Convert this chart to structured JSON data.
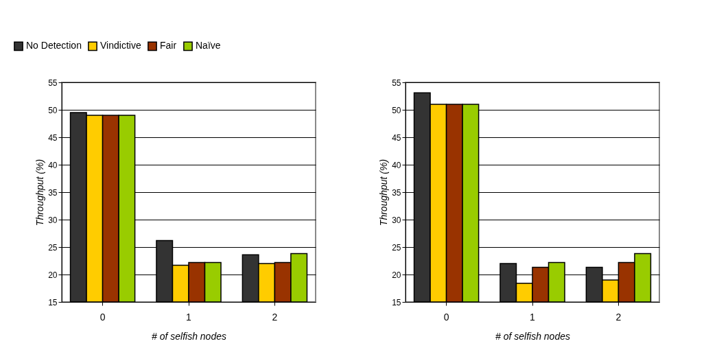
{
  "chart_data": [
    {
      "type": "bar",
      "xlabel": "# of selfish nodes",
      "ylabel": "Throughput (%)",
      "categories": [
        "0",
        "1",
        "2"
      ],
      "ylim": [
        15,
        55
      ],
      "yticks": [
        15,
        20,
        25,
        30,
        35,
        40,
        45,
        50,
        55
      ],
      "grid": "y",
      "legend": "top left",
      "series": [
        {
          "name": "No Detection",
          "color": "#333333",
          "values": [
            49.5,
            26.2,
            23.6
          ]
        },
        {
          "name": "Vindictive",
          "color": "#ffcc00",
          "values": [
            49,
            21.7,
            22.0
          ]
        },
        {
          "name": "Fair",
          "color": "#993300",
          "values": [
            49,
            22.2,
            22.2
          ]
        },
        {
          "name": "Naïve",
          "color": "#99cc00",
          "values": [
            49,
            22.2,
            23.8
          ]
        }
      ]
    },
    {
      "type": "bar",
      "xlabel": "# of selfish nodes",
      "ylabel": "Throughput (%)",
      "categories": [
        "0",
        "1",
        "2"
      ],
      "ylim": [
        15,
        55
      ],
      "yticks": [
        15,
        20,
        25,
        30,
        35,
        40,
        45,
        50,
        55
      ],
      "grid": "y",
      "legend": "top left",
      "series": [
        {
          "name": "No Detection",
          "color": "#333333",
          "values": [
            53.1,
            22.0,
            21.3
          ]
        },
        {
          "name": "Vindictive",
          "color": "#ffcc00",
          "values": [
            51,
            18.4,
            19.0
          ]
        },
        {
          "name": "Fair",
          "color": "#993300",
          "values": [
            51,
            21.3,
            22.2
          ]
        },
        {
          "name": "Naïve",
          "color": "#99cc00",
          "values": [
            51,
            22.2,
            23.8
          ]
        }
      ]
    }
  ]
}
